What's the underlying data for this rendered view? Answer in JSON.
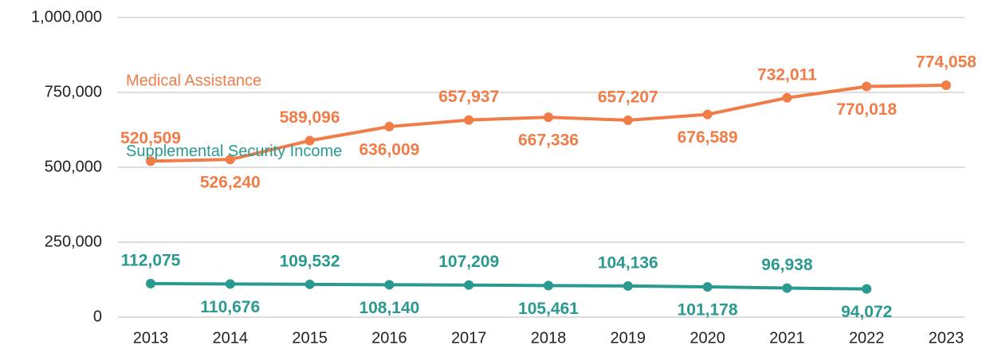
{
  "chart_data": {
    "type": "line",
    "categories": [
      "2013",
      "2014",
      "2015",
      "2016",
      "2017",
      "2018",
      "2019",
      "2020",
      "2021",
      "2022",
      "2023"
    ],
    "series": [
      {
        "name": "Medical Assistance",
        "color": "#f07c48",
        "values": [
          520509,
          526240,
          589096,
          636009,
          657937,
          667336,
          657207,
          676589,
          732011,
          770018,
          774058
        ],
        "value_labels": [
          "520,509",
          "526,240",
          "589,096",
          "636,009",
          "657,937",
          "667,336",
          "657,207",
          "676,589",
          "732,011",
          "770,018",
          "774,058"
        ]
      },
      {
        "name": "Supplemental Security Income",
        "color": "#2a9a90",
        "values": [
          112075,
          110676,
          109532,
          108140,
          107209,
          105461,
          104136,
          101178,
          96938,
          94072,
          null
        ],
        "value_labels": [
          "112,075",
          "110,676",
          "109,532",
          "108,140",
          "107,209",
          "105,461",
          "104,136",
          "101,178",
          "96,938",
          "94,072",
          null
        ]
      }
    ],
    "ylim": [
      0,
      1000000
    ],
    "yticks": [
      0,
      {
        "value": 250000,
        "label": "250,000"
      },
      {
        "value": 500000,
        "label": "500,000"
      },
      {
        "value": 750000,
        "label": "750,000"
      },
      {
        "value": 1000000,
        "label": "1,000,000"
      }
    ],
    "grid": true
  }
}
